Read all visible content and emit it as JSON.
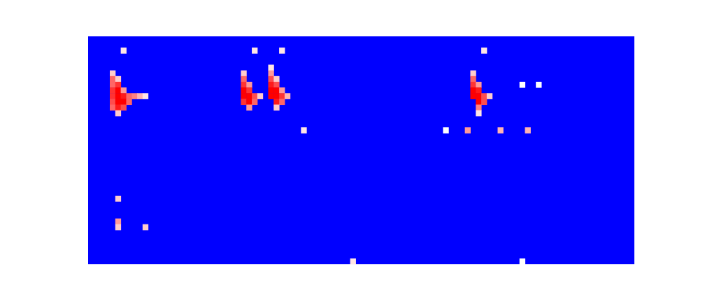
{
  "chart_data": {
    "type": "heatmap",
    "xlim": [
      0,
      100
    ],
    "ylim": [
      0,
      40
    ],
    "zlim": [
      0,
      1
    ],
    "tick_labels": false,
    "cells": [
      [
        4,
        6,
        0.6
      ],
      [
        4,
        7,
        0.8
      ],
      [
        5,
        7,
        0.6
      ],
      [
        4,
        8,
        0.8
      ],
      [
        5,
        8,
        0.9
      ],
      [
        4,
        9,
        0.9
      ],
      [
        5,
        9,
        1.0
      ],
      [
        6,
        9,
        0.7
      ],
      [
        4,
        10,
        0.9
      ],
      [
        5,
        10,
        1.0
      ],
      [
        6,
        10,
        0.95
      ],
      [
        7,
        10,
        0.8
      ],
      [
        8,
        10,
        0.75
      ],
      [
        9,
        10,
        0.65
      ],
      [
        10,
        10,
        0.55
      ],
      [
        4,
        11,
        0.85
      ],
      [
        5,
        11,
        1.0
      ],
      [
        6,
        11,
        1.0
      ],
      [
        7,
        11,
        0.8
      ],
      [
        4,
        12,
        0.8
      ],
      [
        5,
        12,
        0.95
      ],
      [
        6,
        12,
        0.85
      ],
      [
        5,
        13,
        0.6
      ],
      [
        6,
        2,
        0.55
      ],
      [
        28,
        6,
        0.6
      ],
      [
        28,
        7,
        0.8
      ],
      [
        28,
        8,
        0.9
      ],
      [
        29,
        8,
        0.7
      ],
      [
        28,
        9,
        1.0
      ],
      [
        29,
        9,
        0.9
      ],
      [
        28,
        10,
        1.0
      ],
      [
        29,
        10,
        1.0
      ],
      [
        30,
        10,
        0.85
      ],
      [
        31,
        10,
        0.6
      ],
      [
        28,
        11,
        0.9
      ],
      [
        29,
        11,
        1.0
      ],
      [
        30,
        11,
        0.8
      ],
      [
        29,
        12,
        0.7
      ],
      [
        33,
        5,
        0.55
      ],
      [
        33,
        6,
        0.7
      ],
      [
        33,
        7,
        0.85
      ],
      [
        34,
        7,
        0.6
      ],
      [
        33,
        8,
        0.95
      ],
      [
        34,
        8,
        0.85
      ],
      [
        33,
        9,
        1.0
      ],
      [
        34,
        9,
        1.0
      ],
      [
        35,
        9,
        0.7
      ],
      [
        33,
        10,
        1.0
      ],
      [
        34,
        10,
        1.0
      ],
      [
        35,
        10,
        0.9
      ],
      [
        36,
        10,
        0.65
      ],
      [
        34,
        11,
        0.95
      ],
      [
        35,
        11,
        0.8
      ],
      [
        34,
        12,
        0.6
      ],
      [
        30,
        2,
        0.55
      ],
      [
        35,
        2,
        0.55
      ],
      [
        39,
        16,
        0.55
      ],
      [
        70,
        6,
        0.6
      ],
      [
        70,
        7,
        0.8
      ],
      [
        70,
        8,
        0.9
      ],
      [
        71,
        8,
        0.7
      ],
      [
        70,
        9,
        1.0
      ],
      [
        71,
        9,
        0.95
      ],
      [
        70,
        10,
        1.0
      ],
      [
        71,
        10,
        1.0
      ],
      [
        72,
        10,
        0.85
      ],
      [
        73,
        10,
        0.6
      ],
      [
        71,
        11,
        1.0
      ],
      [
        72,
        11,
        0.85
      ],
      [
        71,
        12,
        0.75
      ],
      [
        71,
        13,
        0.55
      ],
      [
        72,
        2,
        0.55
      ],
      [
        79,
        8,
        0.5
      ],
      [
        82,
        8,
        0.5
      ],
      [
        65,
        16,
        0.5
      ],
      [
        69,
        16,
        0.7
      ],
      [
        75,
        16,
        0.65
      ],
      [
        80,
        16,
        0.65
      ],
      [
        5,
        28,
        0.6
      ],
      [
        5,
        32,
        0.7
      ],
      [
        5,
        33,
        0.6
      ],
      [
        10,
        33,
        0.6
      ],
      [
        48,
        39,
        0.55
      ],
      [
        79,
        39,
        0.5
      ]
    ]
  }
}
